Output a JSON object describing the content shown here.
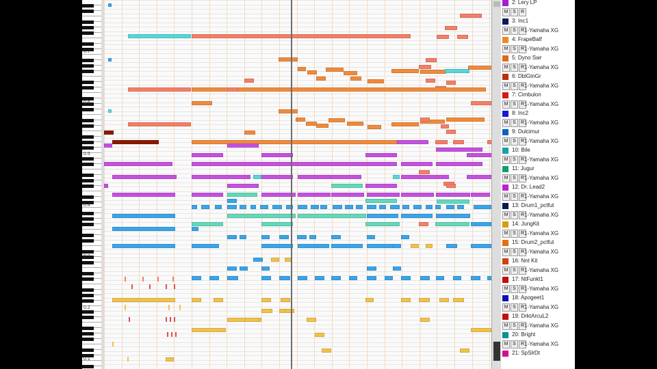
{
  "colors": {
    "orange": "#f08a3c",
    "salmon": "#f47e66",
    "magenta": "#c551e0",
    "cyan": "#56d6d8",
    "blue": "#3aa4e8",
    "teal": "#62d9b8",
    "yellow": "#f2c14a",
    "red": "#e04e4e",
    "darkred": "#8a1a00",
    "pink": "#f48fa8"
  },
  "keyboard": {
    "octave_labels": [
      "0.7",
      "0.6",
      "0.5",
      "0.4",
      "0.3",
      "0.2",
      "0.1"
    ]
  },
  "tracks": [
    {
      "name": "2: Lery LP",
      "device": "",
      "color": "#a020d0"
    },
    {
      "name": "3: Inc1",
      "device": "1-Yamaha XG",
      "color": "#0a1a5a"
    },
    {
      "name": "4: FrapeBalf",
      "device": "1-Yamaha XG",
      "color": "#f0882a"
    },
    {
      "name": "5: Dyno Swr",
      "device": "1-Yamaha XG",
      "color": "#e06a1a"
    },
    {
      "name": "6: DblGtnGr",
      "device": "1-Yamaha XG",
      "color": "#b83010"
    },
    {
      "name": "7: Cimbulon",
      "device": "1-Yamaha XG",
      "color": "#d01a1a"
    },
    {
      "name": "8: Inc2",
      "device": "1-Yamaha XG",
      "color": "#1a1ad0"
    },
    {
      "name": "9: Dulcimur",
      "device": "1-Yamaha XG",
      "color": "#1060c0"
    },
    {
      "name": "10: Bile",
      "device": "1-Yamaha XG",
      "color": "#18a0a0"
    },
    {
      "name": "11: Jugur",
      "device": "1-Yamaha XG",
      "color": "#10a070"
    },
    {
      "name": "12: Dr. Lead2",
      "device": "1-Yamaha XG",
      "color": "#c020d0"
    },
    {
      "name": "13: Drum1_pctfut",
      "device": "1-Yamaha XG",
      "color": "#0a1a4a"
    },
    {
      "name": "14: JungKit",
      "device": "1-Yamaha XG",
      "color": "#d0a010"
    },
    {
      "name": "15: Drum2_pctfut",
      "device": "1-Yamaha XG",
      "color": "#e07010"
    },
    {
      "name": "16: Nnt Kit",
      "device": "1-Yamaha XG",
      "color": "#d04010"
    },
    {
      "name": "17: NtFunkt1",
      "device": "1-Yamaha XG",
      "color": "#c01010"
    },
    {
      "name": "18: Apogeet1",
      "device": "1-Yamaha XG",
      "color": "#1010b0"
    },
    {
      "name": "19: DrktArcuL2",
      "device": "1-Yamaha XG",
      "color": "#c01010"
    },
    {
      "name": "20: Bright",
      "device": "1-Yamaha XG",
      "color": "#109090"
    },
    {
      "name": "21: SpSlrDt",
      "device": "",
      "color": "#d01090"
    }
  ],
  "hsr_labels": [
    "M",
    "S",
    "R"
  ],
  "notes": [
    [
      "cyan",
      35,
      50,
      92
    ],
    [
      "salmon",
      128,
      50,
      320
    ],
    [
      "salmon",
      520,
      20,
      32
    ],
    [
      "salmon",
      498,
      38,
      18
    ],
    [
      "salmon",
      486,
      51,
      18
    ],
    [
      "salmon",
      516,
      51,
      16
    ],
    [
      "salmon",
      470,
      85,
      16
    ],
    [
      "orange",
      255,
      84,
      28
    ],
    [
      "orange",
      283,
      98,
      12
    ],
    [
      "orange",
      297,
      103,
      14
    ],
    [
      "orange",
      310,
      112,
      14
    ],
    [
      "orange",
      324,
      99,
      26
    ],
    [
      "orange",
      350,
      104,
      20
    ],
    [
      "orange",
      360,
      112,
      16
    ],
    [
      "orange",
      385,
      116,
      24
    ],
    [
      "orange",
      420,
      101,
      40
    ],
    [
      "orange",
      462,
      102,
      38
    ],
    [
      "cyan",
      498,
      101,
      36
    ],
    [
      "orange",
      532,
      96,
      36
    ],
    [
      "salmon",
      460,
      95,
      18
    ],
    [
      "salmon",
      470,
      115,
      14
    ],
    [
      "salmon",
      484,
      126,
      16
    ],
    [
      "salmon",
      500,
      118,
      14
    ],
    [
      "salmon",
      536,
      128,
      8
    ],
    [
      "salmon",
      35,
      128,
      92
    ],
    [
      "orange",
      128,
      128,
      430
    ],
    [
      "salmon",
      180,
      128,
      16
    ],
    [
      "salmon",
      205,
      115,
      14
    ],
    [
      "orange",
      128,
      148,
      30
    ],
    [
      "salmon",
      536,
      148,
      30
    ],
    [
      "orange",
      255,
      160,
      28
    ],
    [
      "orange",
      280,
      172,
      14
    ],
    [
      "orange",
      295,
      178,
      16
    ],
    [
      "orange",
      310,
      181,
      18
    ],
    [
      "orange",
      328,
      173,
      24
    ],
    [
      "orange",
      355,
      178,
      24
    ],
    [
      "orange",
      385,
      183,
      20
    ],
    [
      "orange",
      420,
      179,
      40
    ],
    [
      "orange",
      462,
      175,
      36
    ],
    [
      "orange",
      500,
      172,
      56
    ],
    [
      "salmon",
      462,
      172,
      14
    ],
    [
      "salmon",
      492,
      182,
      12
    ],
    [
      "salmon",
      500,
      190,
      14
    ],
    [
      "salmon",
      35,
      179,
      92
    ],
    [
      "orange",
      205,
      191,
      16
    ],
    [
      "darkred",
      0,
      191,
      14
    ],
    [
      "darkred",
      12,
      205,
      68
    ],
    [
      "orange",
      128,
      205,
      300
    ],
    [
      "magenta",
      428,
      205,
      46
    ],
    [
      "magenta",
      180,
      210,
      46
    ],
    [
      "salmon",
      484,
      205,
      18
    ],
    [
      "salmon",
      510,
      205,
      16
    ],
    [
      "salmon",
      560,
      205,
      8
    ],
    [
      "magenta",
      485,
      216,
      68
    ],
    [
      "magenta",
      0,
      210,
      12
    ],
    [
      "magenta",
      128,
      224,
      46
    ],
    [
      "magenta",
      230,
      224,
      46
    ],
    [
      "magenta",
      382,
      224,
      46
    ],
    [
      "magenta",
      530,
      224,
      46
    ],
    [
      "magenta",
      0,
      237,
      100
    ],
    [
      "magenta",
      128,
      237,
      300
    ],
    [
      "magenta",
      434,
      237,
      46
    ],
    [
      "magenta",
      485,
      237,
      68
    ],
    [
      "salmon",
      460,
      249,
      16
    ],
    [
      "magenta",
      12,
      256,
      94
    ],
    [
      "magenta",
      128,
      256,
      86
    ],
    [
      "cyan",
      218,
      256,
      12
    ],
    [
      "magenta",
      230,
      256,
      46
    ],
    [
      "magenta",
      283,
      256,
      48
    ],
    [
      "magenta",
      330,
      256,
      46
    ],
    [
      "cyan",
      422,
      256,
      10
    ],
    [
      "magenta",
      434,
      256,
      70
    ],
    [
      "magenta",
      530,
      256,
      38
    ],
    [
      "salmon",
      496,
      266,
      16
    ],
    [
      "magenta",
      0,
      269,
      6
    ],
    [
      "magenta",
      180,
      269,
      46
    ],
    [
      "teal",
      332,
      269,
      46
    ],
    [
      "magenta",
      382,
      269,
      46
    ],
    [
      "salmon",
      500,
      269,
      14
    ],
    [
      "magenta",
      12,
      282,
      92
    ],
    [
      "magenta",
      128,
      282,
      46
    ],
    [
      "teal",
      180,
      282,
      44
    ],
    [
      "magenta",
      230,
      282,
      50
    ],
    [
      "magenta",
      283,
      282,
      48
    ],
    [
      "magenta",
      332,
      282,
      48
    ],
    [
      "magenta",
      384,
      282,
      48
    ],
    [
      "magenta",
      434,
      282,
      48
    ],
    [
      "magenta",
      485,
      282,
      50
    ],
    [
      "magenta",
      536,
      282,
      28
    ],
    [
      "blue",
      180,
      291,
      14
    ],
    [
      "teal",
      382,
      291,
      46
    ],
    [
      "teal",
      486,
      292,
      48
    ],
    [
      "blue",
      128,
      300,
      8
    ],
    [
      "blue",
      142,
      300,
      12
    ],
    [
      "blue",
      162,
      300,
      10
    ],
    [
      "blue",
      180,
      300,
      14
    ],
    [
      "blue",
      198,
      300,
      10
    ],
    [
      "blue",
      214,
      300,
      8
    ],
    [
      "blue",
      228,
      300,
      12
    ],
    [
      "blue",
      246,
      300,
      14
    ],
    [
      "blue",
      266,
      300,
      10
    ],
    [
      "blue",
      283,
      300,
      14
    ],
    [
      "blue",
      302,
      300,
      12
    ],
    [
      "blue",
      316,
      300,
      10
    ],
    [
      "blue",
      334,
      300,
      14
    ],
    [
      "blue",
      352,
      300,
      12
    ],
    [
      "blue",
      368,
      300,
      10
    ],
    [
      "blue",
      384,
      300,
      14
    ],
    [
      "blue",
      402,
      300,
      10
    ],
    [
      "blue",
      418,
      300,
      14
    ],
    [
      "blue",
      436,
      300,
      10
    ],
    [
      "blue",
      452,
      300,
      12
    ],
    [
      "blue",
      470,
      300,
      10
    ],
    [
      "blue",
      484,
      300,
      8
    ],
    [
      "blue",
      500,
      300,
      12
    ],
    [
      "blue",
      516,
      300,
      10
    ],
    [
      "blue",
      540,
      300,
      28
    ],
    [
      "blue",
      12,
      313,
      92
    ],
    [
      "teal",
      180,
      313,
      100
    ],
    [
      "teal",
      283,
      313,
      100
    ],
    [
      "blue",
      384,
      313,
      46
    ],
    [
      "blue",
      434,
      313,
      46
    ],
    [
      "blue",
      485,
      313,
      50
    ],
    [
      "teal",
      128,
      325,
      46
    ],
    [
      "teal",
      230,
      325,
      46
    ],
    [
      "teal",
      382,
      325,
      50
    ],
    [
      "teal",
      484,
      325,
      50
    ],
    [
      "blue",
      536,
      325,
      30
    ],
    [
      "salmon",
      460,
      325,
      14
    ],
    [
      "blue",
      12,
      332,
      92
    ],
    [
      "blue",
      128,
      332,
      10
    ],
    [
      "blue",
      180,
      344,
      14
    ],
    [
      "blue",
      198,
      344,
      10
    ],
    [
      "blue",
      230,
      344,
      12
    ],
    [
      "blue",
      256,
      344,
      14
    ],
    [
      "blue",
      282,
      344,
      14
    ],
    [
      "blue",
      300,
      344,
      10
    ],
    [
      "blue",
      332,
      344,
      14
    ],
    [
      "blue",
      384,
      344,
      12
    ],
    [
      "blue",
      434,
      344,
      12
    ],
    [
      "blue",
      12,
      357,
      92
    ],
    [
      "blue",
      128,
      357,
      40
    ],
    [
      "blue",
      230,
      357,
      46
    ],
    [
      "blue",
      283,
      357,
      46
    ],
    [
      "blue",
      332,
      357,
      46
    ],
    [
      "blue",
      384,
      357,
      46
    ],
    [
      "blue",
      422,
      357,
      12
    ],
    [
      "yellow",
      448,
      357,
      12
    ],
    [
      "yellow",
      470,
      357,
      10
    ],
    [
      "blue",
      500,
      357,
      16
    ],
    [
      "blue",
      536,
      357,
      30
    ],
    [
      "blue",
      218,
      377,
      14
    ],
    [
      "yellow",
      244,
      377,
      12
    ],
    [
      "yellow",
      264,
      377,
      10
    ],
    [
      "blue",
      180,
      390,
      14
    ],
    [
      "blue",
      198,
      390,
      12
    ],
    [
      "blue",
      230,
      390,
      12
    ],
    [
      "blue",
      384,
      390,
      14
    ],
    [
      "blue",
      422,
      390,
      12
    ],
    [
      "blue",
      128,
      404,
      14
    ],
    [
      "blue",
      154,
      404,
      14
    ],
    [
      "blue",
      180,
      404,
      16
    ],
    [
      "blue",
      230,
      404,
      14
    ],
    [
      "blue",
      256,
      404,
      16
    ],
    [
      "blue",
      283,
      404,
      14
    ],
    [
      "blue",
      308,
      404,
      14
    ],
    [
      "blue",
      332,
      404,
      14
    ],
    [
      "blue",
      358,
      404,
      12
    ],
    [
      "blue",
      384,
      404,
      14
    ],
    [
      "blue",
      410,
      404,
      12
    ],
    [
      "blue",
      434,
      404,
      14
    ],
    [
      "blue",
      462,
      404,
      14
    ],
    [
      "blue",
      485,
      404,
      12
    ],
    [
      "blue",
      510,
      404,
      12
    ],
    [
      "blue",
      536,
      404,
      14
    ],
    [
      "blue",
      560,
      404,
      8
    ],
    [
      "yellow",
      12,
      436,
      92
    ],
    [
      "yellow",
      128,
      436,
      14
    ],
    [
      "yellow",
      160,
      436,
      14
    ],
    [
      "yellow",
      230,
      436,
      14
    ],
    [
      "yellow",
      258,
      436,
      14
    ],
    [
      "yellow",
      382,
      436,
      12
    ],
    [
      "yellow",
      434,
      436,
      14
    ],
    [
      "yellow",
      460,
      436,
      16
    ],
    [
      "yellow",
      490,
      436,
      14
    ],
    [
      "yellow",
      510,
      436,
      16
    ],
    [
      "yellow",
      230,
      452,
      16
    ],
    [
      "yellow",
      256,
      452,
      12
    ],
    [
      "yellow",
      264,
      452,
      14
    ],
    [
      "yellow",
      180,
      465,
      50
    ],
    [
      "yellow",
      206,
      465,
      20
    ],
    [
      "yellow",
      296,
      465,
      14
    ],
    [
      "yellow",
      462,
      465,
      14
    ],
    [
      "yellow",
      128,
      480,
      50
    ],
    [
      "yellow",
      308,
      487,
      14
    ],
    [
      "yellow",
      536,
      480,
      30
    ],
    [
      "yellow",
      318,
      510,
      14
    ],
    [
      "yellow",
      520,
      510,
      14
    ],
    [
      "yellow",
      90,
      523,
      12
    ]
  ],
  "ticks": [
    [
      "salmon",
      30,
      405,
      2,
      7
    ],
    [
      "salmon",
      56,
      405,
      2,
      7
    ],
    [
      "salmon",
      78,
      405,
      2,
      7
    ],
    [
      "salmon",
      100,
      405,
      2,
      7
    ],
    [
      "red",
      40,
      416,
      2,
      7
    ],
    [
      "red",
      66,
      416,
      2,
      7
    ],
    [
      "red",
      90,
      416,
      2,
      7
    ],
    [
      "red",
      102,
      416,
      2,
      7
    ],
    [
      "yellow",
      30,
      446,
      2,
      8
    ],
    [
      "yellow",
      94,
      446,
      2,
      8
    ],
    [
      "yellow",
      110,
      446,
      2,
      8
    ],
    [
      "red",
      36,
      464,
      2,
      7
    ],
    [
      "red",
      90,
      464,
      2,
      7
    ],
    [
      "red",
      96,
      464,
      2,
      7
    ],
    [
      "red",
      102,
      464,
      2,
      7
    ],
    [
      "red",
      92,
      486,
      2,
      7
    ],
    [
      "red",
      98,
      486,
      2,
      7
    ],
    [
      "red",
      104,
      486,
      2,
      7
    ],
    [
      "yellow",
      34,
      522,
      2,
      7
    ],
    [
      "yellow",
      12,
      500,
      2,
      7
    ]
  ],
  "icons": [
    [
      "blue",
      6,
      5
    ],
    [
      "blue",
      6,
      85
    ],
    [
      "cyan",
      6,
      160
    ]
  ],
  "playhead_ratio": 0.47
}
